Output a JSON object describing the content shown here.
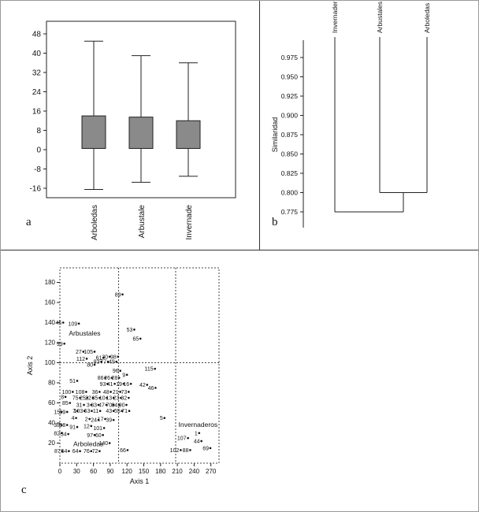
{
  "figure": {
    "panel_a_label": "a",
    "panel_b_label": "b",
    "panel_c_label": "c"
  },
  "colors": {
    "box_fill": "#8a8a8a",
    "line": "#222222",
    "cluster_label_blue": "#2222bb"
  },
  "chart_data": [
    {
      "id": "boxplot",
      "type": "box",
      "panel": "a",
      "title": "",
      "xlabel": "",
      "ylabel": "",
      "ylim": [
        -20,
        50
      ],
      "yticks": [
        48,
        40,
        32,
        24,
        16,
        8,
        0,
        -8,
        -16
      ],
      "categories": [
        "Arboledas",
        "Arbustale",
        "Invernade"
      ],
      "box_fill": "#8a8a8a",
      "boxes": [
        {
          "category": "Arboledas",
          "whisker_low": -16.5,
          "q1": 0.5,
          "q3": 14,
          "whisker_high": 45
        },
        {
          "category": "Arbustale",
          "whisker_low": -13.5,
          "q1": 0.5,
          "q3": 13.5,
          "whisker_high": 39
        },
        {
          "category": "Invernade",
          "whisker_low": -11,
          "q1": 0.5,
          "q3": 12,
          "whisker_high": 36
        }
      ]
    },
    {
      "id": "dendrogram",
      "type": "dendrogram",
      "panel": "b",
      "ylabel": "Similaridad",
      "yticks": [
        0.975,
        0.95,
        0.925,
        0.9,
        0.875,
        0.85,
        0.825,
        0.8,
        0.775
      ],
      "leaves": [
        "Invernader",
        "Arbustales",
        "Arboledas"
      ],
      "merges": [
        {
          "members": [
            "Arbustales",
            "Arboledas"
          ],
          "height": 0.8
        },
        {
          "members": [
            "Invernader",
            "cluster(Arbustales,Arboledas)"
          ],
          "height": 0.775
        }
      ]
    },
    {
      "id": "ordination",
      "type": "scatter",
      "panel": "c",
      "xlabel": "Axis 1",
      "ylabel": "Axis 2",
      "xticks": [
        0,
        30,
        60,
        90,
        120,
        150,
        180,
        210,
        240,
        270
      ],
      "yticks": [
        20,
        40,
        60,
        80,
        100,
        120,
        140,
        160,
        180
      ],
      "xlim": [
        0,
        285
      ],
      "ylim": [
        0,
        195
      ],
      "gridlines": {
        "vertical_x": [
          105,
          207
        ],
        "horizontal_y": [
          100
        ],
        "style": "dotted"
      },
      "cluster_labels": [
        {
          "text": "Arbustales",
          "x": 16,
          "y": 127,
          "color": "#2222bb"
        },
        {
          "text": "Invernaderos",
          "x": 212,
          "y": 36,
          "color": "#2222bb"
        },
        {
          "text": "Arboledas",
          "x": 24,
          "y": 17,
          "color": "#2222bb"
        }
      ],
      "points": [
        {
          "label": "89",
          "x": 112,
          "y": 168
        },
        {
          "label": "45",
          "x": 6,
          "y": 140
        },
        {
          "label": "109",
          "x": 34,
          "y": 139
        },
        {
          "label": "53",
          "x": 133,
          "y": 133
        },
        {
          "label": "65",
          "x": 144,
          "y": 124
        },
        {
          "label": "99",
          "x": 8,
          "y": 119
        },
        {
          "label": "27",
          "x": 42,
          "y": 111
        },
        {
          "label": "105",
          "x": 62,
          "y": 111
        },
        {
          "label": "112",
          "x": 48,
          "y": 104
        },
        {
          "label": "61",
          "x": 78,
          "y": 105
        },
        {
          "label": "30",
          "x": 89,
          "y": 106
        },
        {
          "label": "98",
          "x": 104,
          "y": 106
        },
        {
          "label": "83",
          "x": 74,
          "y": 101
        },
        {
          "label": "77",
          "x": 86,
          "y": 101
        },
        {
          "label": "49",
          "x": 101,
          "y": 101
        },
        {
          "label": "80",
          "x": 62,
          "y": 98
        },
        {
          "label": "96",
          "x": 108,
          "y": 92
        },
        {
          "label": "115",
          "x": 170,
          "y": 94
        },
        {
          "label": "51",
          "x": 31,
          "y": 82
        },
        {
          "label": "86",
          "x": 81,
          "y": 85
        },
        {
          "label": "26",
          "x": 93,
          "y": 85
        },
        {
          "label": "28",
          "x": 106,
          "y": 85
        },
        {
          "label": "9",
          "x": 120,
          "y": 88
        },
        {
          "label": "93",
          "x": 85,
          "y": 79
        },
        {
          "label": "41",
          "x": 98,
          "y": 79
        },
        {
          "label": "19",
          "x": 114,
          "y": 79
        },
        {
          "label": "16",
          "x": 127,
          "y": 79
        },
        {
          "label": "42",
          "x": 156,
          "y": 78
        },
        {
          "label": "46",
          "x": 171,
          "y": 75
        },
        {
          "label": "100",
          "x": 23,
          "y": 71
        },
        {
          "label": "108",
          "x": 47,
          "y": 71
        },
        {
          "label": "36",
          "x": 71,
          "y": 71
        },
        {
          "label": "48",
          "x": 91,
          "y": 71
        },
        {
          "label": "21",
          "x": 108,
          "y": 71
        },
        {
          "label": "73",
          "x": 123,
          "y": 71
        },
        {
          "label": "8",
          "x": 10,
          "y": 66
        },
        {
          "label": "75",
          "x": 36,
          "y": 65
        },
        {
          "label": "25",
          "x": 49,
          "y": 65
        },
        {
          "label": "22",
          "x": 59,
          "y": 65
        },
        {
          "label": "35",
          "x": 71,
          "y": 65
        },
        {
          "label": "10",
          "x": 84,
          "y": 65
        },
        {
          "label": "13",
          "x": 96,
          "y": 65
        },
        {
          "label": "23",
          "x": 109,
          "y": 65
        },
        {
          "label": "32",
          "x": 123,
          "y": 65
        },
        {
          "label": "85",
          "x": 18,
          "y": 60
        },
        {
          "label": "31",
          "x": 43,
          "y": 58
        },
        {
          "label": "3",
          "x": 56,
          "y": 58
        },
        {
          "label": "33",
          "x": 69,
          "y": 58
        },
        {
          "label": "47",
          "x": 83,
          "y": 58
        },
        {
          "label": "70",
          "x": 96,
          "y": 58
        },
        {
          "label": "84",
          "x": 106,
          "y": 58
        },
        {
          "label": "90",
          "x": 119,
          "y": 58
        },
        {
          "label": "15",
          "x": 3,
          "y": 51
        },
        {
          "label": "59",
          "x": 13,
          "y": 51
        },
        {
          "label": "7",
          "x": 31,
          "y": 52
        },
        {
          "label": "103",
          "x": 44,
          "y": 52
        },
        {
          "label": "63",
          "x": 57,
          "y": 52
        },
        {
          "label": "11",
          "x": 72,
          "y": 52
        },
        {
          "label": "43",
          "x": 96,
          "y": 52
        },
        {
          "label": "55",
          "x": 111,
          "y": 52
        },
        {
          "label": "71",
          "x": 124,
          "y": 52
        },
        {
          "label": "4",
          "x": 29,
          "y": 45
        },
        {
          "label": "2",
          "x": 53,
          "y": 44
        },
        {
          "label": "24",
          "x": 69,
          "y": 43
        },
        {
          "label": "17",
          "x": 81,
          "y": 44
        },
        {
          "label": "39",
          "x": 96,
          "y": 43
        },
        {
          "label": "5",
          "x": 187,
          "y": 45
        },
        {
          "label": "38",
          "x": 3,
          "y": 38
        },
        {
          "label": "58",
          "x": 13,
          "y": 38
        },
        {
          "label": "91",
          "x": 31,
          "y": 36
        },
        {
          "label": "12",
          "x": 56,
          "y": 37
        },
        {
          "label": "101",
          "x": 79,
          "y": 35
        },
        {
          "label": "82",
          "x": 3,
          "y": 30
        },
        {
          "label": "34",
          "x": 15,
          "y": 29
        },
        {
          "label": "97",
          "x": 62,
          "y": 28
        },
        {
          "label": "60",
          "x": 77,
          "y": 28
        },
        {
          "label": "140",
          "x": 89,
          "y": 20
        },
        {
          "label": "66",
          "x": 121,
          "y": 13
        },
        {
          "label": "87",
          "x": 4,
          "y": 12
        },
        {
          "label": "54",
          "x": 16,
          "y": 12
        },
        {
          "label": "64",
          "x": 36,
          "y": 12
        },
        {
          "label": "76",
          "x": 56,
          "y": 12
        },
        {
          "label": "72",
          "x": 71,
          "y": 12
        },
        {
          "label": "107",
          "x": 229,
          "y": 25
        },
        {
          "label": "1",
          "x": 249,
          "y": 30
        },
        {
          "label": "44",
          "x": 253,
          "y": 22
        },
        {
          "label": "69",
          "x": 269,
          "y": 15
        },
        {
          "label": "102",
          "x": 216,
          "y": 13
        },
        {
          "label": "88",
          "x": 233,
          "y": 13
        }
      ]
    }
  ]
}
